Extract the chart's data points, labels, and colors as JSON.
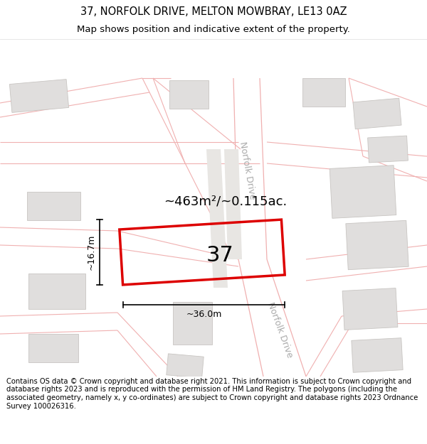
{
  "title_line1": "37, NORFOLK DRIVE, MELTON MOWBRAY, LE13 0AZ",
  "title_line2": "Map shows position and indicative extent of the property.",
  "footer_text": "Contains OS data © Crown copyright and database right 2021. This information is subject to Crown copyright and database rights 2023 and is reproduced with the permission of HM Land Registry. The polygons (including the associated geometry, namely x, y co-ordinates) are subject to Crown copyright and database rights 2023 Ordnance Survey 100026316.",
  "map_bg_color": "#ffffff",
  "road_color": "#f0b0b0",
  "road_lw": 0.8,
  "building_fill": "#e0dedd",
  "building_edge": "#c8c5c2",
  "property_rect_color": "#dd0000",
  "property_label": "37",
  "area_label": "~463m²/~0.115ac.",
  "dim_h_label": "~16.7m",
  "dim_w_label": "~36.0m",
  "norfolk_drive_label": "Norfolk Drive",
  "title_fontsize": 10.5,
  "subtitle_fontsize": 9.5,
  "footer_fontsize": 7.2,
  "label_fontsize": 13,
  "number_fontsize": 22,
  "dim_fontsize": 9,
  "norfolk_fontsize": 9
}
